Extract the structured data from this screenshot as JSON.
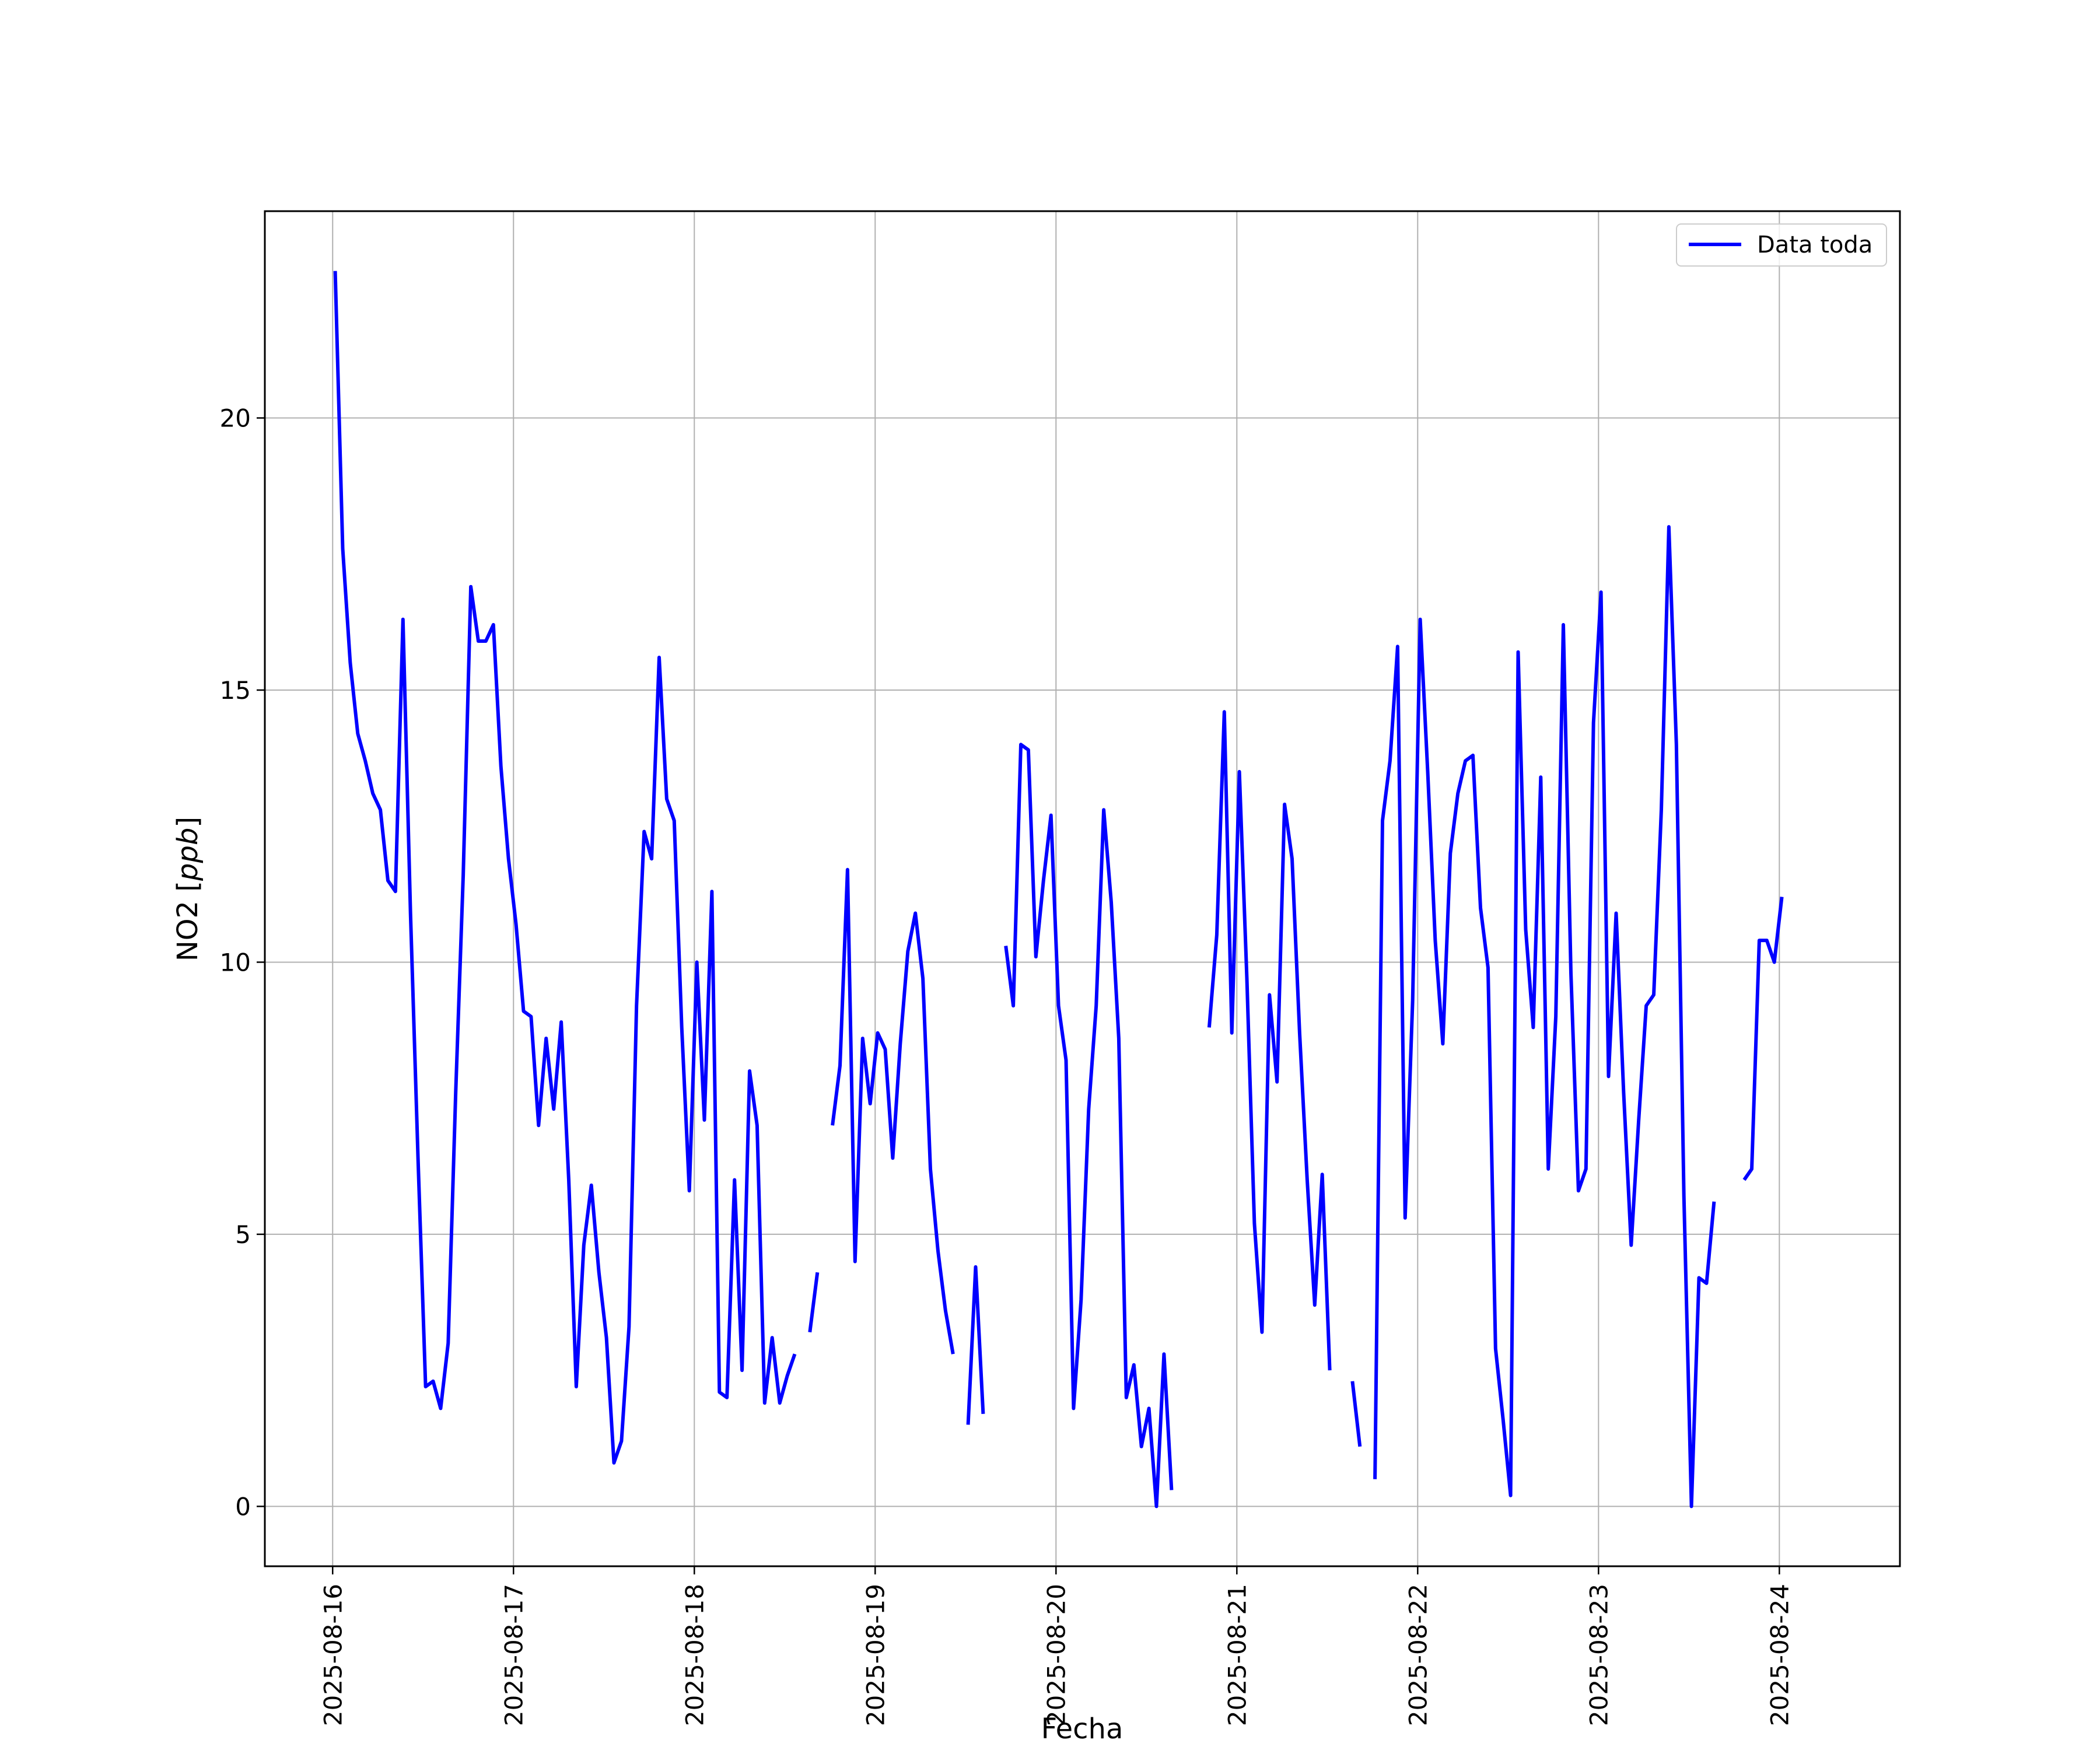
{
  "chart_data": {
    "type": "line",
    "title": "",
    "xlabel": "Fecha",
    "ylabel": "NO2 [ppb]",
    "ylabel_parts": {
      "main": "NO2 [",
      "italic": "ppb",
      "close": "]"
    },
    "grid": true,
    "legend_position": "top-right",
    "x_is_date": true,
    "xlim": [
      "2025-08-15 15:00",
      "2025-08-24 16:00"
    ],
    "ylim": [
      -1.1,
      23.8
    ],
    "x_tick_labels": [
      "2025-08-16",
      "2025-08-17",
      "2025-08-18",
      "2025-08-19",
      "2025-08-20",
      "2025-08-21",
      "2025-08-22",
      "2025-08-23",
      "2025-08-24"
    ],
    "y_ticks": [
      0,
      5,
      10,
      15,
      20
    ],
    "series": [
      {
        "name": "Data toda",
        "color": "#0000ff",
        "points": [
          [
            "2025-08-16 00:20",
            22.7
          ],
          [
            "2025-08-16 01:20",
            17.6
          ],
          [
            "2025-08-16 02:20",
            15.5
          ],
          [
            "2025-08-16 03:20",
            14.2
          ],
          [
            "2025-08-16 04:20",
            13.7
          ],
          [
            "2025-08-16 05:20",
            13.1
          ],
          [
            "2025-08-16 06:20",
            12.8
          ],
          [
            "2025-08-16 07:20",
            11.5
          ],
          [
            "2025-08-16 08:20",
            11.3
          ],
          [
            "2025-08-16 09:20",
            16.3
          ],
          [
            "2025-08-16 10:20",
            10.9
          ],
          [
            "2025-08-16 11:20",
            6.4
          ],
          [
            "2025-08-16 12:20",
            2.2
          ],
          [
            "2025-08-16 13:20",
            2.3
          ],
          [
            "2025-08-16 14:20",
            1.8
          ],
          [
            "2025-08-16 15:20",
            3.0
          ],
          [
            "2025-08-16 16:20",
            7.6
          ],
          [
            "2025-08-16 17:20",
            11.6
          ],
          [
            "2025-08-16 18:20",
            16.9
          ],
          [
            "2025-08-16 19:20",
            15.9
          ],
          [
            "2025-08-16 20:20",
            15.9
          ],
          [
            "2025-08-16 21:20",
            16.2
          ],
          [
            "2025-08-16 22:20",
            13.6
          ],
          [
            "2025-08-16 23:20",
            11.9
          ],
          [
            "2025-08-17 00:20",
            10.7
          ],
          [
            "2025-08-17 01:20",
            9.1
          ],
          [
            "2025-08-17 02:20",
            9.0
          ],
          [
            "2025-08-17 03:20",
            7.0
          ],
          [
            "2025-08-17 04:20",
            8.6
          ],
          [
            "2025-08-17 05:20",
            7.3
          ],
          [
            "2025-08-17 06:20",
            8.9
          ],
          [
            "2025-08-17 07:20",
            6.0
          ],
          [
            "2025-08-17 08:20",
            2.2
          ],
          [
            "2025-08-17 09:20",
            4.8
          ],
          [
            "2025-08-17 10:20",
            5.9
          ],
          [
            "2025-08-17 11:20",
            4.3
          ],
          [
            "2025-08-17 12:20",
            3.1
          ],
          [
            "2025-08-17 13:20",
            0.8
          ],
          [
            "2025-08-17 14:20",
            1.2
          ],
          [
            "2025-08-17 15:20",
            3.3
          ],
          [
            "2025-08-17 16:20",
            9.2
          ],
          [
            "2025-08-17 17:20",
            12.4
          ],
          [
            "2025-08-17 18:20",
            11.9
          ],
          [
            "2025-08-17 19:20",
            15.6
          ],
          [
            "2025-08-17 20:20",
            13.0
          ],
          [
            "2025-08-17 21:20",
            12.6
          ],
          [
            "2025-08-17 22:20",
            8.8
          ],
          [
            "2025-08-17 23:20",
            5.8
          ],
          [
            "2025-08-18 00:20",
            10.0
          ],
          [
            "2025-08-18 01:20",
            7.1
          ],
          [
            "2025-08-18 02:20",
            11.3
          ],
          [
            "2025-08-18 03:20",
            2.1
          ],
          [
            "2025-08-18 04:20",
            2.0
          ],
          [
            "2025-08-18 05:20",
            6.0
          ],
          [
            "2025-08-18 06:20",
            2.5
          ],
          [
            "2025-08-18 07:20",
            8.0
          ],
          [
            "2025-08-18 08:20",
            7.0
          ],
          [
            "2025-08-18 09:20",
            1.9
          ],
          [
            "2025-08-18 10:20",
            3.1
          ],
          [
            "2025-08-18 11:20",
            1.9
          ],
          [
            "2025-08-18 12:20",
            2.4
          ],
          [
            "2025-08-18 13:20",
            2.8
          ],
          null,
          [
            "2025-08-18 15:20",
            3.2
          ],
          [
            "2025-08-18 16:20",
            4.3
          ],
          null,
          [
            "2025-08-18 18:20",
            7.0
          ],
          [
            "2025-08-18 19:20",
            8.1
          ],
          [
            "2025-08-18 20:20",
            11.7
          ],
          [
            "2025-08-18 21:20",
            4.5
          ],
          [
            "2025-08-18 22:20",
            8.6
          ],
          [
            "2025-08-18 23:20",
            7.4
          ],
          [
            "2025-08-19 00:20",
            8.7
          ],
          [
            "2025-08-19 01:20",
            8.4
          ],
          [
            "2025-08-19 02:20",
            6.4
          ],
          [
            "2025-08-19 03:20",
            8.5
          ],
          [
            "2025-08-19 04:20",
            10.2
          ],
          [
            "2025-08-19 05:20",
            10.9
          ],
          [
            "2025-08-19 06:20",
            9.7
          ],
          [
            "2025-08-19 07:20",
            6.2
          ],
          [
            "2025-08-19 08:20",
            4.7
          ],
          [
            "2025-08-19 09:20",
            3.6
          ],
          [
            "2025-08-19 10:20",
            2.8
          ],
          null,
          [
            "2025-08-19 12:20",
            1.5
          ],
          [
            "2025-08-19 13:20",
            4.4
          ],
          [
            "2025-08-19 14:20",
            1.7
          ],
          null,
          [
            "2025-08-19 17:20",
            10.3
          ],
          [
            "2025-08-19 18:20",
            9.2
          ],
          [
            "2025-08-19 19:20",
            14.0
          ],
          [
            "2025-08-19 20:20",
            13.9
          ],
          [
            "2025-08-19 21:20",
            10.1
          ],
          [
            "2025-08-19 22:20",
            11.5
          ],
          [
            "2025-08-19 23:20",
            12.7
          ],
          [
            "2025-08-20 00:20",
            9.2
          ],
          [
            "2025-08-20 01:20",
            8.2
          ],
          [
            "2025-08-20 02:20",
            1.8
          ],
          [
            "2025-08-20 03:20",
            3.8
          ],
          [
            "2025-08-20 04:20",
            7.3
          ],
          [
            "2025-08-20 05:20",
            9.2
          ],
          [
            "2025-08-20 06:20",
            12.8
          ],
          [
            "2025-08-20 07:20",
            11.1
          ],
          [
            "2025-08-20 08:20",
            8.6
          ],
          [
            "2025-08-20 09:20",
            2.0
          ],
          [
            "2025-08-20 10:20",
            2.6
          ],
          [
            "2025-08-20 11:20",
            1.1
          ],
          [
            "2025-08-20 12:20",
            1.8
          ],
          [
            "2025-08-20 13:20",
            0.0
          ],
          [
            "2025-08-20 14:20",
            2.8
          ],
          [
            "2025-08-20 15:20",
            0.3
          ],
          null,
          [
            "2025-08-20 20:20",
            8.8
          ],
          [
            "2025-08-20 21:20",
            10.5
          ],
          [
            "2025-08-20 22:20",
            14.6
          ],
          [
            "2025-08-20 23:20",
            8.7
          ],
          [
            "2025-08-21 00:20",
            13.5
          ],
          [
            "2025-08-21 01:20",
            9.7
          ],
          [
            "2025-08-21 02:20",
            5.2
          ],
          [
            "2025-08-21 03:20",
            3.2
          ],
          [
            "2025-08-21 04:20",
            9.4
          ],
          [
            "2025-08-21 05:20",
            7.8
          ],
          [
            "2025-08-21 06:20",
            12.9
          ],
          [
            "2025-08-21 07:20",
            11.9
          ],
          [
            "2025-08-21 08:20",
            8.7
          ],
          [
            "2025-08-21 09:20",
            6.0
          ],
          [
            "2025-08-21 10:20",
            3.7
          ],
          [
            "2025-08-21 11:20",
            6.1
          ],
          [
            "2025-08-21 12:20",
            2.5
          ],
          null,
          [
            "2025-08-21 15:20",
            2.3
          ],
          [
            "2025-08-21 16:20",
            1.1
          ],
          null,
          [
            "2025-08-21 18:20",
            0.5
          ],
          [
            "2025-08-21 19:20",
            12.6
          ],
          [
            "2025-08-21 20:20",
            13.7
          ],
          [
            "2025-08-21 21:20",
            15.8
          ],
          [
            "2025-08-21 22:20",
            5.3
          ],
          [
            "2025-08-21 23:20",
            9.3
          ],
          [
            "2025-08-22 00:20",
            16.3
          ],
          [
            "2025-08-22 01:20",
            13.5
          ],
          [
            "2025-08-22 02:20",
            10.4
          ],
          [
            "2025-08-22 03:20",
            8.5
          ],
          [
            "2025-08-22 04:20",
            12.0
          ],
          [
            "2025-08-22 05:20",
            13.1
          ],
          [
            "2025-08-22 06:20",
            13.7
          ],
          [
            "2025-08-22 07:20",
            13.8
          ],
          [
            "2025-08-22 08:20",
            11.0
          ],
          [
            "2025-08-22 09:20",
            9.9
          ],
          [
            "2025-08-22 10:20",
            2.9
          ],
          [
            "2025-08-22 11:20",
            1.6
          ],
          [
            "2025-08-22 12:20",
            0.2
          ],
          [
            "2025-08-22 13:20",
            15.7
          ],
          [
            "2025-08-22 14:20",
            10.6
          ],
          [
            "2025-08-22 15:20",
            8.8
          ],
          [
            "2025-08-22 16:20",
            13.4
          ],
          [
            "2025-08-22 17:20",
            6.2
          ],
          [
            "2025-08-22 18:20",
            9.0
          ],
          [
            "2025-08-22 19:20",
            16.2
          ],
          [
            "2025-08-22 20:20",
            9.8
          ],
          [
            "2025-08-22 21:20",
            5.8
          ],
          [
            "2025-08-22 22:20",
            6.2
          ],
          [
            "2025-08-22 23:20",
            14.4
          ],
          [
            "2025-08-23 00:20",
            16.8
          ],
          [
            "2025-08-23 01:20",
            7.9
          ],
          [
            "2025-08-23 02:20",
            10.9
          ],
          [
            "2025-08-23 03:20",
            7.6
          ],
          [
            "2025-08-23 04:20",
            4.8
          ],
          [
            "2025-08-23 05:20",
            7.1
          ],
          [
            "2025-08-23 06:20",
            9.2
          ],
          [
            "2025-08-23 07:20",
            9.4
          ],
          [
            "2025-08-23 08:20",
            12.8
          ],
          [
            "2025-08-23 09:20",
            18.0
          ],
          [
            "2025-08-23 10:20",
            14.0
          ],
          [
            "2025-08-23 11:20",
            5.7
          ],
          [
            "2025-08-23 12:20",
            0.0
          ],
          [
            "2025-08-23 13:20",
            4.2
          ],
          [
            "2025-08-23 14:20",
            4.1
          ],
          [
            "2025-08-23 15:20",
            5.6
          ],
          null,
          [
            "2025-08-23 19:20",
            6.0
          ],
          [
            "2025-08-23 20:20",
            6.2
          ],
          [
            "2025-08-23 21:20",
            10.4
          ],
          [
            "2025-08-23 22:20",
            10.4
          ],
          [
            "2025-08-23 23:20",
            10.0
          ],
          [
            "2025-08-24 00:20",
            11.2
          ]
        ]
      }
    ]
  }
}
